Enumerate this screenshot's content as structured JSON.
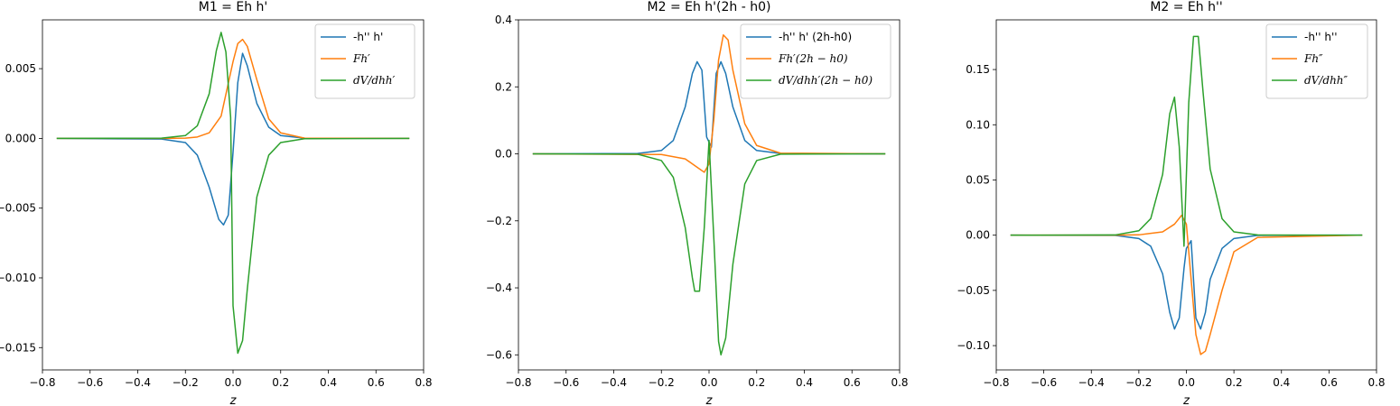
{
  "colors": {
    "blue": "#1f77b4",
    "orange": "#ff7f0e",
    "green": "#2ca02c"
  },
  "chart_data": [
    {
      "type": "line",
      "title": "M1 = Eh h'",
      "xlabel": "z",
      "ylabel": "",
      "xlim": [
        -0.8,
        0.8
      ],
      "ylim": [
        -0.0166,
        0.0085
      ],
      "xticks": [
        -0.8,
        -0.6,
        -0.4,
        -0.2,
        0.0,
        0.2,
        0.4,
        0.6,
        0.8
      ],
      "xtick_labels": [
        "−0.8",
        "−0.6",
        "−0.4",
        "−0.2",
        "0.0",
        "0.2",
        "0.4",
        "0.6",
        "0.8"
      ],
      "yticks": [
        0.005,
        0.0,
        -0.005,
        -0.01,
        -0.015
      ],
      "ytick_labels": [
        "0.005",
        "0.000",
        "−0.005",
        "−0.010",
        "−0.015"
      ],
      "legend_position": "top-right",
      "grid": false,
      "series": [
        {
          "name": "-h'' h'",
          "color": "#1f77b4",
          "math": false,
          "x": [
            -0.74,
            -0.3,
            -0.2,
            -0.15,
            -0.1,
            -0.06,
            -0.04,
            -0.02,
            0.0,
            0.02,
            0.04,
            0.06,
            0.1,
            0.15,
            0.2,
            0.3,
            0.74
          ],
          "y": [
            0,
            -5e-05,
            -0.0003,
            -0.0012,
            -0.0035,
            -0.0058,
            -0.0062,
            -0.0055,
            -0.001,
            0.004,
            0.0061,
            0.0052,
            0.0025,
            0.0008,
            0.0002,
            2e-05,
            0
          ]
        },
        {
          "name": "Fh′",
          "color": "#ff7f0e",
          "math": true,
          "x": [
            -0.74,
            -0.3,
            -0.2,
            -0.15,
            -0.1,
            -0.05,
            0.0,
            0.02,
            0.04,
            0.06,
            0.1,
            0.15,
            0.2,
            0.3,
            0.74
          ],
          "y": [
            0,
            0,
            2e-05,
            0.0001,
            0.0004,
            0.0016,
            0.0055,
            0.0068,
            0.0071,
            0.0066,
            0.0042,
            0.0014,
            0.0004,
            2e-05,
            0
          ]
        },
        {
          "name": "dV/dhh′",
          "color": "#2ca02c",
          "math": true,
          "x": [
            -0.74,
            -0.3,
            -0.2,
            -0.15,
            -0.1,
            -0.07,
            -0.05,
            -0.03,
            -0.01,
            0.0,
            0.02,
            0.04,
            0.06,
            0.1,
            0.15,
            0.2,
            0.3,
            0.74
          ],
          "y": [
            0,
            2e-05,
            0.0002,
            0.0009,
            0.0032,
            0.0063,
            0.0076,
            0.0062,
            0.0015,
            -0.012,
            -0.0154,
            -0.0145,
            -0.0108,
            -0.0042,
            -0.0012,
            -0.0003,
            -2e-05,
            0
          ]
        }
      ]
    },
    {
      "type": "line",
      "title": "M2 = Eh h'(2h - h0)",
      "xlabel": "z",
      "ylabel": "",
      "xlim": [
        -0.8,
        0.8
      ],
      "ylim": [
        -0.645,
        0.4
      ],
      "xticks": [
        -0.8,
        -0.6,
        -0.4,
        -0.2,
        0.0,
        0.2,
        0.4,
        0.6,
        0.8
      ],
      "xtick_labels": [
        "−0.8",
        "−0.6",
        "−0.4",
        "−0.2",
        "0.0",
        "0.2",
        "0.4",
        "0.6",
        "0.8"
      ],
      "yticks": [
        0.4,
        0.2,
        0.0,
        -0.2,
        -0.4,
        -0.6
      ],
      "ytick_labels": [
        "0.4",
        "0.2",
        "0.0",
        "−0.2",
        "−0.4",
        "−0.6"
      ],
      "legend_position": "top-right",
      "grid": false,
      "series": [
        {
          "name": "-h'' h' (2h-h0)",
          "color": "#1f77b4",
          "math": false,
          "x": [
            -0.74,
            -0.3,
            -0.2,
            -0.15,
            -0.1,
            -0.07,
            -0.05,
            -0.03,
            -0.01,
            0.01,
            0.03,
            0.05,
            0.07,
            0.1,
            0.15,
            0.2,
            0.3,
            0.74
          ],
          "y": [
            0,
            0.001,
            0.01,
            0.04,
            0.14,
            0.24,
            0.275,
            0.25,
            0.05,
            0.02,
            0.24,
            0.275,
            0.24,
            0.14,
            0.04,
            0.01,
            0.001,
            0
          ]
        },
        {
          "name": "Fh′(2h − h0)",
          "color": "#ff7f0e",
          "math": true,
          "x": [
            -0.74,
            -0.2,
            -0.1,
            -0.05,
            -0.02,
            0.0,
            0.02,
            0.04,
            0.06,
            0.08,
            0.1,
            0.15,
            0.2,
            0.3,
            0.74
          ],
          "y": [
            0,
            -0.002,
            -0.015,
            -0.04,
            -0.055,
            -0.03,
            0.1,
            0.28,
            0.355,
            0.34,
            0.25,
            0.09,
            0.025,
            0.002,
            0
          ]
        },
        {
          "name": "dV/dhh′(2h − h0)",
          "color": "#2ca02c",
          "math": true,
          "x": [
            -0.74,
            -0.3,
            -0.2,
            -0.15,
            -0.1,
            -0.07,
            -0.06,
            -0.04,
            -0.02,
            0.0,
            0.02,
            0.04,
            0.05,
            0.07,
            0.1,
            0.15,
            0.2,
            0.3,
            0.74
          ],
          "y": [
            0,
            -0.001,
            -0.02,
            -0.07,
            -0.22,
            -0.37,
            -0.41,
            -0.41,
            -0.22,
            0.04,
            -0.25,
            -0.56,
            -0.6,
            -0.55,
            -0.33,
            -0.09,
            -0.02,
            -0.001,
            0
          ]
        }
      ]
    },
    {
      "type": "line",
      "title": "M2 = Eh h''",
      "xlabel": "z",
      "ylabel": "",
      "xlim": [
        -0.8,
        0.8
      ],
      "ylim": [
        -0.122,
        0.195
      ],
      "xticks": [
        -0.8,
        -0.6,
        -0.4,
        -0.2,
        0.0,
        0.2,
        0.4,
        0.6,
        0.8
      ],
      "xtick_labels": [
        "−0.8",
        "−0.6",
        "−0.4",
        "−0.2",
        "0.0",
        "0.2",
        "0.4",
        "0.6",
        "0.8"
      ],
      "yticks": [
        0.15,
        0.1,
        0.05,
        0.0,
        -0.05,
        -0.1
      ],
      "ytick_labels": [
        "0.15",
        "0.10",
        "0.05",
        "0.00",
        "−0.05",
        "−0.10"
      ],
      "legend_position": "top-right",
      "grid": false,
      "series": [
        {
          "name": "-h'' h''",
          "color": "#1f77b4",
          "math": false,
          "x": [
            -0.74,
            -0.3,
            -0.2,
            -0.15,
            -0.1,
            -0.07,
            -0.05,
            -0.03,
            -0.01,
            0.0,
            0.02,
            0.04,
            0.06,
            0.08,
            0.1,
            0.15,
            0.2,
            0.3,
            0.74
          ],
          "y": [
            0,
            -0.0002,
            -0.003,
            -0.01,
            -0.035,
            -0.07,
            -0.085,
            -0.075,
            -0.03,
            -0.012,
            -0.005,
            -0.075,
            -0.085,
            -0.07,
            -0.04,
            -0.012,
            -0.003,
            -0.0002,
            0
          ]
        },
        {
          "name": "Fh″",
          "color": "#ff7f0e",
          "math": true,
          "x": [
            -0.74,
            -0.3,
            -0.2,
            -0.1,
            -0.05,
            -0.02,
            0.0,
            0.02,
            0.04,
            0.06,
            0.08,
            0.1,
            0.15,
            0.2,
            0.3,
            0.74
          ],
          "y": [
            0,
            0,
            0.0003,
            0.003,
            0.01,
            0.018,
            0.01,
            -0.04,
            -0.09,
            -0.108,
            -0.105,
            -0.09,
            -0.05,
            -0.015,
            -0.002,
            0
          ]
        },
        {
          "name": "dV/dhh″",
          "color": "#2ca02c",
          "math": true,
          "x": [
            -0.74,
            -0.3,
            -0.2,
            -0.15,
            -0.1,
            -0.07,
            -0.05,
            -0.03,
            -0.01,
            0.01,
            0.03,
            0.05,
            0.07,
            0.1,
            0.15,
            0.2,
            0.3,
            0.74
          ],
          "y": [
            0,
            0.0002,
            0.004,
            0.015,
            0.055,
            0.11,
            0.125,
            0.08,
            -0.01,
            0.12,
            0.18,
            0.18,
            0.13,
            0.06,
            0.015,
            0.003,
            0.0002,
            0
          ]
        }
      ]
    }
  ]
}
